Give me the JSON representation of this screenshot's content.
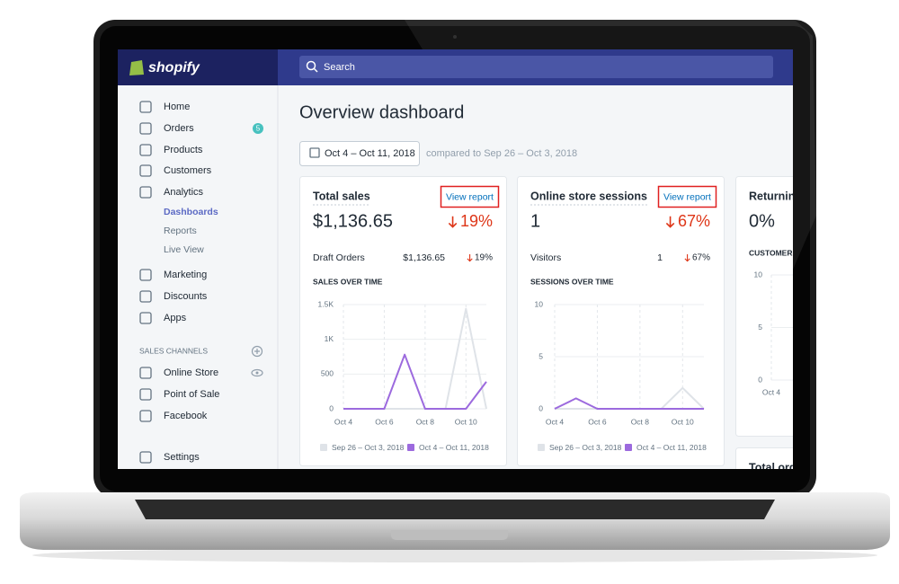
{
  "header": {
    "brand": "shopify",
    "search": "Search"
  },
  "sidebar": {
    "nav": [
      {
        "label": "Home"
      },
      {
        "label": "Orders",
        "badge": "5"
      },
      {
        "label": "Products"
      },
      {
        "label": "Customers"
      },
      {
        "label": "Analytics"
      }
    ],
    "analytics_sub": [
      "Dashboards",
      "Reports",
      "Live View"
    ],
    "nav2": [
      "Marketing",
      "Discounts",
      "Apps"
    ],
    "sales_channels_heading": "SALES CHANNELS",
    "channels": [
      "Online Store",
      "Point of Sale",
      "Facebook"
    ],
    "settings": "Settings"
  },
  "page": {
    "title": "Overview dashboard",
    "date_range": "Oct 4 – Oct 11, 2018",
    "compare": "compared to Sep 26 – Oct 3, 2018"
  },
  "cards": [
    {
      "title": "Total sales",
      "link": "View report",
      "value": "$1,136.65",
      "change": "19%",
      "row": {
        "label": "Draft Orders",
        "value": "$1,136.65",
        "change": "19%"
      },
      "chart": {
        "type": "line",
        "title": "SALES OVER TIME",
        "categories": [
          "Oct 4",
          null,
          "Oct 6",
          null,
          "Oct 8",
          null,
          "Oct 10",
          null
        ],
        "series": [
          {
            "name": "Sep 26 – Oct 3, 2018",
            "color": "#dfe3e8",
            "values": [
              0,
              0,
              0,
              0,
              0,
              0,
              1440,
              0
            ]
          },
          {
            "name": "Oct 4 – Oct 11, 2018",
            "color": "#9c6ade",
            "values": [
              0,
              0,
              0,
              780,
              0,
              0,
              0,
              390
            ]
          }
        ],
        "ylim": [
          0,
          1500
        ],
        "yticks": [
          0,
          500,
          {
            "value": 1000,
            "label": "1K"
          },
          {
            "value": 1500,
            "label": "1.5K"
          }
        ]
      }
    },
    {
      "title": "Online store sessions",
      "link": "View report",
      "value": "1",
      "change": "67%",
      "row": {
        "label": "Visitors",
        "value": "1",
        "change": "67%"
      },
      "chart": {
        "type": "line",
        "title": "SESSIONS OVER TIME",
        "categories": [
          "Oct 4",
          null,
          "Oct 6",
          null,
          "Oct 8",
          null,
          "Oct 10",
          null
        ],
        "series": [
          {
            "name": "Sep 26 – Oct 3, 2018",
            "color": "#dfe3e8",
            "values": [
              0,
              0,
              0,
              0,
              0,
              0,
              2,
              0
            ]
          },
          {
            "name": "Oct 4 – Oct 11, 2018",
            "color": "#9c6ade",
            "values": [
              0,
              1,
              0,
              0,
              0,
              0,
              0,
              0
            ]
          }
        ],
        "ylim": [
          0,
          10
        ],
        "yticks": [
          0,
          5,
          10
        ]
      }
    },
    {
      "title": "Returning",
      "value": "0%",
      "chart": {
        "type": "line",
        "title": "CUSTOMERS",
        "categories": [
          "Oct 4"
        ],
        "ylim": [
          0,
          10
        ],
        "yticks": [
          0,
          5,
          10
        ]
      }
    },
    {
      "title": "Total ord"
    }
  ]
}
